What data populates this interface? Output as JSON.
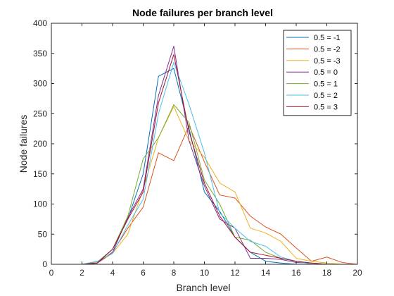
{
  "chart_data": {
    "type": "line",
    "title": "Node failures per branch level",
    "xlabel": "Branch level",
    "ylabel": "Node failures",
    "xlim": [
      0,
      20
    ],
    "ylim": [
      0,
      400
    ],
    "xticks": [
      0,
      2,
      4,
      6,
      8,
      10,
      12,
      14,
      16,
      18,
      20
    ],
    "yticks": [
      0,
      50,
      100,
      150,
      200,
      250,
      300,
      350,
      400
    ],
    "grid": false,
    "legend_position": "top-right",
    "x": [
      1,
      2,
      3,
      4,
      5,
      6,
      7,
      8,
      9,
      10,
      11,
      12,
      13,
      14,
      15,
      16,
      17,
      18,
      19,
      20
    ],
    "series": [
      {
        "name": "0.5 = -1",
        "color": "#0072BD",
        "values": [
          0,
          0,
          2,
          25,
          75,
          150,
          312,
          325,
          225,
          120,
          88,
          45,
          20,
          5,
          2,
          0,
          0,
          0,
          0,
          0
        ]
      },
      {
        "name": "0.5 = -2",
        "color": "#D95319",
        "values": [
          0,
          0,
          2,
          20,
          60,
          95,
          185,
          172,
          230,
          170,
          115,
          110,
          80,
          62,
          50,
          27,
          5,
          12,
          3,
          0
        ]
      },
      {
        "name": "0.5 = -3",
        "color": "#EDB120",
        "values": [
          0,
          0,
          2,
          18,
          50,
          125,
          210,
          262,
          205,
          178,
          135,
          120,
          60,
          52,
          38,
          10,
          5,
          2,
          0,
          0
        ]
      },
      {
        "name": "0.5 = 0",
        "color": "#7E2F8E",
        "values": [
          0,
          0,
          2,
          20,
          78,
          125,
          280,
          362,
          205,
          130,
          75,
          60,
          10,
          10,
          8,
          3,
          2,
          0,
          0,
          0
        ]
      },
      {
        "name": "0.5 = 1",
        "color": "#77AC30",
        "values": [
          0,
          0,
          4,
          25,
          80,
          175,
          210,
          265,
          235,
          140,
          100,
          45,
          40,
          20,
          10,
          5,
          2,
          0,
          0,
          0
        ]
      },
      {
        "name": "0.5 = 2",
        "color": "#4DBEEE",
        "values": [
          0,
          0,
          5,
          18,
          65,
          108,
          250,
          335,
          265,
          185,
          85,
          60,
          38,
          30,
          12,
          5,
          0,
          0,
          0,
          0
        ]
      },
      {
        "name": "0.5 = 3",
        "color": "#A2142F",
        "values": [
          0,
          0,
          2,
          25,
          75,
          120,
          268,
          348,
          220,
          135,
          80,
          45,
          20,
          15,
          10,
          5,
          2,
          0,
          0,
          0
        ]
      }
    ]
  }
}
